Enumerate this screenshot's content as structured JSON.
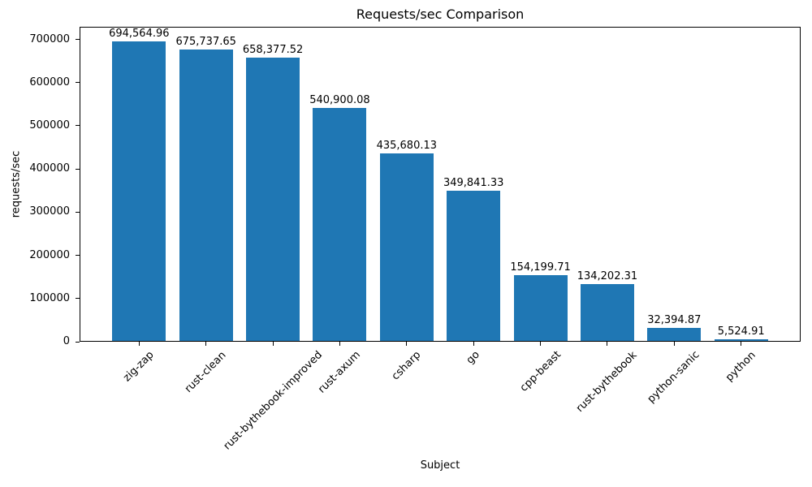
{
  "chart_data": {
    "type": "bar",
    "title": "Requests/sec Comparison",
    "xlabel": "Subject",
    "ylabel": "requests/sec",
    "categories": [
      "zig-zap",
      "rust-clean",
      "rust-bythebook-improved",
      "rust-axum",
      "csharp",
      "go",
      "cpp-beast",
      "rust-bythebook",
      "python-sanic",
      "python"
    ],
    "values": [
      694564.96,
      675737.65,
      658377.52,
      540900.08,
      435680.13,
      349841.33,
      154199.71,
      134202.31,
      32394.87,
      5524.91
    ],
    "value_labels": [
      "694,564.96",
      "675,737.65",
      "658,377.52",
      "540,900.08",
      "435,680.13",
      "349,841.33",
      "154,199.71",
      "134,202.31",
      "32,394.87",
      "5,524.91"
    ],
    "bar_color": "#1f77b4",
    "ylim": [
      0,
      729293
    ],
    "yticks": [
      0,
      100000,
      200000,
      300000,
      400000,
      500000,
      600000,
      700000
    ],
    "ytick_labels": [
      "0",
      "100000",
      "200000",
      "300000",
      "400000",
      "500000",
      "600000",
      "700000"
    ],
    "x_tick_rotation": 45,
    "grid": false,
    "legend": false
  }
}
